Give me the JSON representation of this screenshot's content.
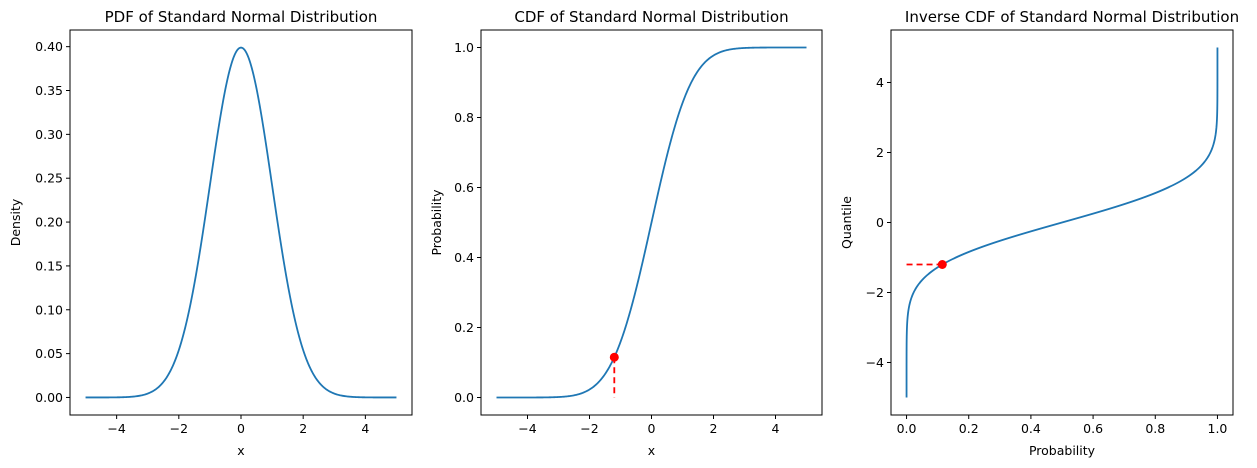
{
  "chart_data": [
    {
      "type": "line",
      "id": "pdf",
      "title": "PDF of Standard Normal Distribution",
      "xlabel": "x",
      "ylabel": "Density",
      "xlim": [
        -5.5,
        5.5
      ],
      "ylim": [
        -0.02,
        0.419
      ],
      "xticks": [
        -4,
        -2,
        0,
        2,
        4
      ],
      "xtick_labels": [
        "−4",
        "−2",
        "0",
        "2",
        "4"
      ],
      "yticks": [
        0.0,
        0.05,
        0.1,
        0.15,
        0.2,
        0.25,
        0.3,
        0.35,
        0.4
      ],
      "ytick_labels": [
        "0.00",
        "0.05",
        "0.10",
        "0.15",
        "0.20",
        "0.25",
        "0.30",
        "0.35",
        "0.40"
      ],
      "grid": false,
      "series": [
        {
          "name": "pdf",
          "function": "normal_pdf",
          "x_range": [
            -5,
            5
          ],
          "color": "#1f77b4"
        }
      ],
      "marker": null
    },
    {
      "type": "line",
      "id": "cdf",
      "title": "CDF of Standard Normal Distribution",
      "xlabel": "x",
      "ylabel": "Probability",
      "xlim": [
        -5.5,
        5.5
      ],
      "ylim": [
        -0.05,
        1.05
      ],
      "xticks": [
        -4,
        -2,
        0,
        2,
        4
      ],
      "xtick_labels": [
        "−4",
        "−2",
        "0",
        "2",
        "4"
      ],
      "yticks": [
        0.0,
        0.2,
        0.4,
        0.6,
        0.8,
        1.0
      ],
      "ytick_labels": [
        "0.0",
        "0.2",
        "0.4",
        "0.6",
        "0.8",
        "1.0"
      ],
      "grid": false,
      "series": [
        {
          "name": "cdf",
          "function": "normal_cdf",
          "x_range": [
            -5,
            5
          ],
          "color": "#1f77b4"
        }
      ],
      "marker": {
        "x": -1.2,
        "y": 0.115,
        "color": "#ff0000",
        "dashed_line": "vertical-to-zero"
      }
    },
    {
      "type": "line",
      "id": "ppf",
      "title": "Inverse CDF of Standard Normal Distribution",
      "xlabel": "Probability",
      "ylabel": "Quantile",
      "xlim": [
        -0.05,
        1.05
      ],
      "ylim": [
        -5.5,
        5.5
      ],
      "xticks": [
        0.0,
        0.2,
        0.4,
        0.6,
        0.8,
        1.0
      ],
      "xtick_labels": [
        "0.0",
        "0.2",
        "0.4",
        "0.6",
        "0.8",
        "1.0"
      ],
      "yticks": [
        -4,
        -2,
        0,
        2,
        4
      ],
      "ytick_labels": [
        "−4",
        "−2",
        "0",
        "2",
        "4"
      ],
      "grid": false,
      "series": [
        {
          "name": "ppf",
          "function": "normal_ppf",
          "y_range": [
            -5,
            5
          ],
          "color": "#1f77b4"
        }
      ],
      "marker": {
        "x": 0.115,
        "y": -1.2,
        "color": "#ff0000",
        "dashed_line": "horizontal-to-zero"
      }
    }
  ]
}
